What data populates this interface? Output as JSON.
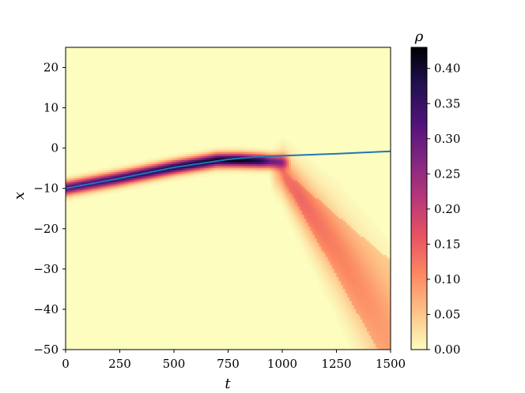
{
  "chart_data": {
    "type": "heatmap",
    "xlabel": "t",
    "ylabel": "x",
    "xlim": [
      0,
      1500
    ],
    "ylim": [
      -50,
      25
    ],
    "x_ticks": [
      0,
      250,
      500,
      750,
      1000,
      1250,
      1500
    ],
    "y_ticks": [
      20,
      10,
      0,
      -10,
      -20,
      -30,
      -40,
      -50
    ],
    "x_tick_labels": [
      "0",
      "250",
      "500",
      "750",
      "1000",
      "1250",
      "1500"
    ],
    "y_tick_labels": [
      "20",
      "10",
      "0",
      "−10",
      "−20",
      "−30",
      "−40",
      "−50"
    ],
    "colorbar": {
      "label": "ρ",
      "range": [
        0,
        0.43
      ],
      "ticks": [
        0.0,
        0.05,
        0.1,
        0.15,
        0.2,
        0.25,
        0.3,
        0.35,
        0.4
      ],
      "tick_labels": [
        "0.00",
        "0.05",
        "0.10",
        "0.15",
        "0.20",
        "0.25",
        "0.30",
        "0.35",
        "0.40"
      ],
      "colormap": "magma_r",
      "colormap_stops": [
        "#fcfdbf",
        "#fec287",
        "#fb8861",
        "#e85362",
        "#b73779",
        "#832681",
        "#50127b",
        "#221150",
        "#000004"
      ]
    },
    "density_ridge": {
      "t": [
        0,
        250,
        500,
        700,
        800,
        900,
        1000
      ],
      "x_center": [
        -10,
        -7.5,
        -4.8,
        -3,
        -3,
        -3.2,
        -3.5
      ],
      "peak_rho": [
        0.33,
        0.36,
        0.39,
        0.41,
        0.43,
        0.38,
        0.2
      ]
    },
    "dispersal_plume": {
      "t": [
        1000,
        1250,
        1500
      ],
      "x_center": [
        -6,
        -25,
        -47
      ],
      "peak_rho": [
        0.12,
        0.08,
        0.05
      ]
    },
    "series": [
      {
        "type": "line",
        "color": "#1f77b4",
        "x": [
          0,
          250,
          500,
          750,
          900,
          1000,
          1250,
          1500
        ],
        "y": [
          -10,
          -7.5,
          -4.8,
          -2.8,
          -2.1,
          -1.9,
          -1.4,
          -0.8
        ]
      }
    ]
  }
}
